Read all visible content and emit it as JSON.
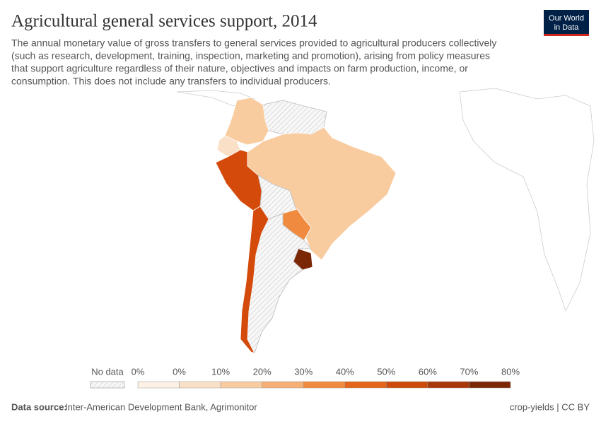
{
  "header": {
    "title": "Agricultural general services support, 2014",
    "subtitle_lines": [
      "The annual monetary value of gross transfers to general services provided to agricultural producers collectively",
      "(such as research, development, training, inspection, marketing and promotion), arising from policy measures",
      "that support agriculture regardless of their nature, objectives and impacts on farm production, income, or",
      "consumption. This does not include any transfers to individual producers."
    ]
  },
  "logo": {
    "lines": [
      "Our World",
      "in Data"
    ]
  },
  "legend": {
    "no_data": "No data",
    "ticks": [
      "0%",
      "0%",
      "10%",
      "20%",
      "30%",
      "40%",
      "50%",
      "60%",
      "70%",
      "80%"
    ],
    "colors": [
      "#fdf1e6",
      "#fbe0c8",
      "#f9cca0",
      "#f5ae73",
      "#f08a3f",
      "#e2651b",
      "#cc4a0a",
      "#a83807",
      "#7b2604"
    ]
  },
  "footer": {
    "source_label": "Data source:",
    "source": "Inter-American Development Bank, Agrimonitor",
    "right": "crop-yields | CC BY"
  }
}
